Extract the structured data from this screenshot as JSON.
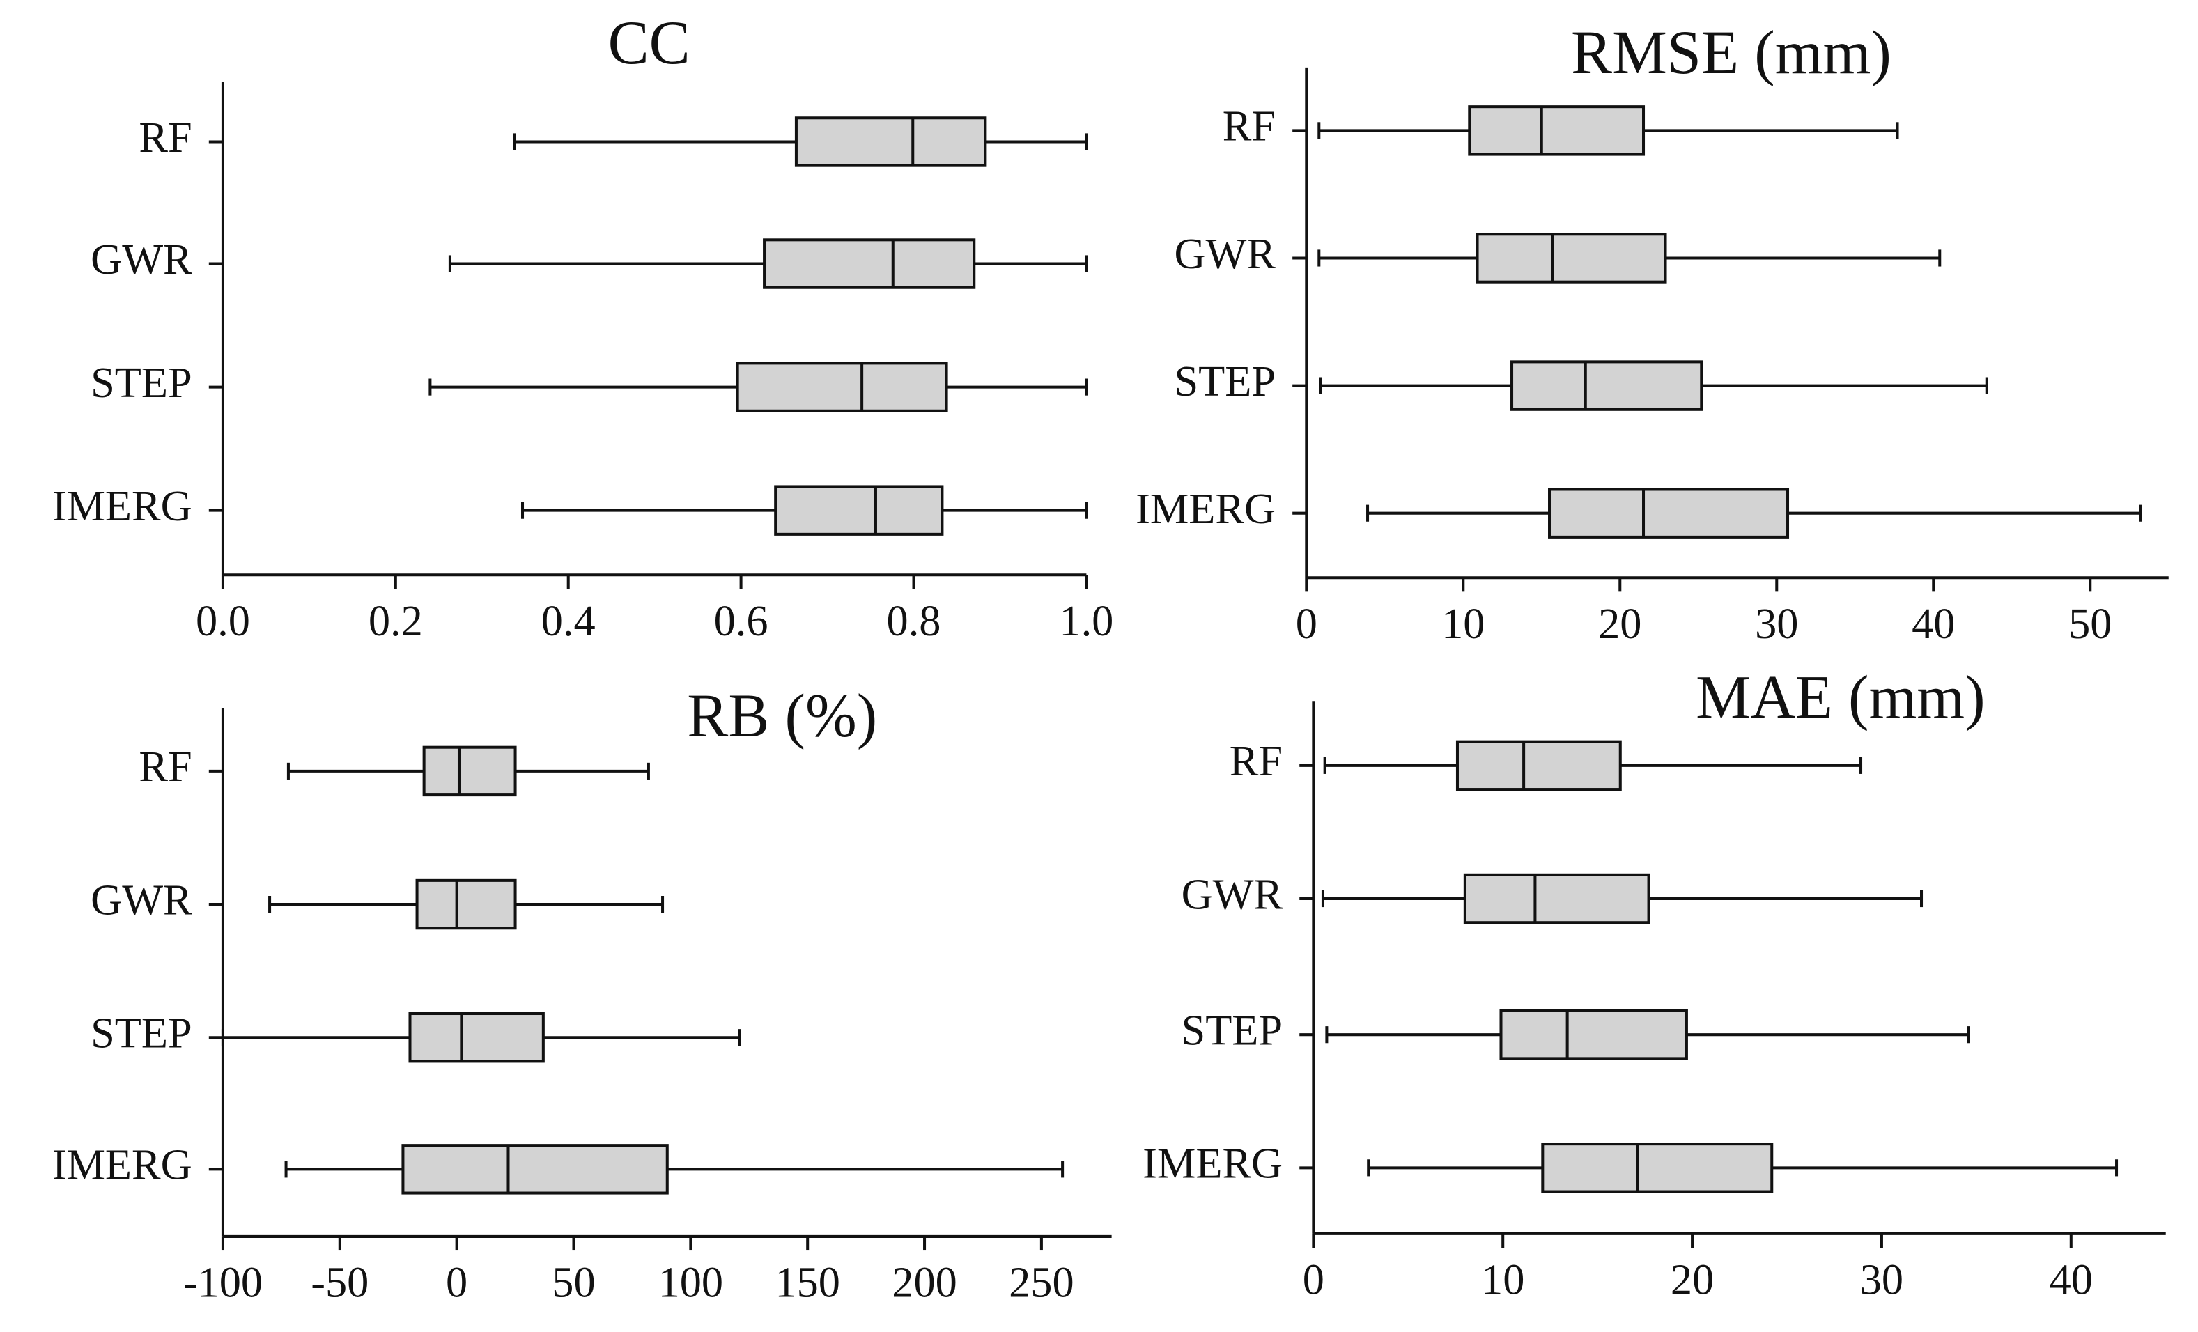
{
  "chart_data": [
    {
      "type": "boxplot",
      "title": "CC",
      "categories": [
        "RF",
        "GWR",
        "STEP",
        "IMERG"
      ],
      "whisker_low": [
        0.338,
        0.263,
        0.24,
        0.347
      ],
      "q1": [
        0.664,
        0.627,
        0.596,
        0.64
      ],
      "median": [
        0.799,
        0.776,
        0.74,
        0.756
      ],
      "q3": [
        0.883,
        0.87,
        0.838,
        0.833
      ],
      "whisker_high": [
        1.0,
        1.0,
        1.0,
        1.0
      ],
      "color": "#d3d3d3",
      "xlim": [
        0,
        1
      ],
      "xticks": [
        {
          "value": 0,
          "label": "0.0"
        },
        0.2,
        0.4,
        0.6,
        0.8,
        {
          "value": 1,
          "label": "1.0"
        }
      ]
    },
    {
      "type": "boxplot",
      "title": "RMSE (mm)",
      "categories": [
        "RF",
        "GWR",
        "STEP",
        "IMERG"
      ],
      "whisker_low": [
        0.8,
        0.8,
        0.9,
        3.9
      ],
      "q1": [
        10.4,
        10.9,
        13.1,
        15.5
      ],
      "median": [
        15.0,
        15.7,
        17.8,
        21.5
      ],
      "q3": [
        21.5,
        22.9,
        25.2,
        30.7
      ],
      "whisker_high": [
        37.7,
        40.4,
        43.4,
        53.2
      ],
      "color": "#d3d3d3",
      "xlim": [
        0,
        55
      ],
      "xticks": [
        0,
        10,
        20,
        30,
        40,
        50
      ]
    },
    {
      "type": "boxplot",
      "title": "RB (%)",
      "categories": [
        "RF",
        "GWR",
        "STEP",
        "IMERG"
      ],
      "whisker_low": [
        -72,
        -80,
        -100,
        -73
      ],
      "q1": [
        -14,
        -17,
        -20,
        -23
      ],
      "median": [
        1,
        0,
        2,
        22
      ],
      "q3": [
        25,
        25,
        37,
        90
      ],
      "whisker_high": [
        82,
        88,
        121,
        259
      ],
      "color": "#d3d3d3",
      "xlim": [
        -100,
        280
      ],
      "xticks": [
        -100,
        -50,
        0,
        50,
        100,
        150,
        200,
        250
      ]
    },
    {
      "type": "boxplot",
      "title": "MAE (mm)",
      "categories": [
        "RF",
        "GWR",
        "STEP",
        "IMERG"
      ],
      "whisker_low": [
        0.6,
        0.5,
        0.7,
        2.9
      ],
      "q1": [
        7.6,
        8.0,
        9.9,
        12.1
      ],
      "median": [
        11.1,
        11.7,
        13.4,
        17.1
      ],
      "q3": [
        16.2,
        17.7,
        19.7,
        24.2
      ],
      "whisker_high": [
        28.9,
        32.1,
        34.6,
        42.4
      ],
      "color": "#d3d3d3",
      "xlim": [
        0,
        45
      ],
      "xticks": [
        0,
        10,
        20,
        30,
        40
      ]
    }
  ]
}
